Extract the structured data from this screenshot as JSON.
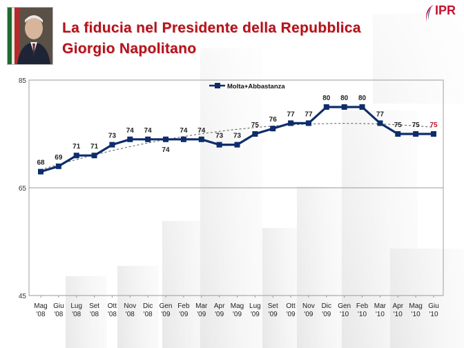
{
  "header": {
    "title_line1": "La fiducia nel Presidente della Repubblica",
    "title_line2": "Giorgio Napolitano",
    "logo_text": "IPR"
  },
  "colors": {
    "title": "#b5121b",
    "series": "#0d2d6b",
    "last_label": "#c0141d",
    "logo": "#c8102e"
  },
  "chart_data": {
    "type": "line",
    "title": "",
    "xlabel": "",
    "ylabel": "",
    "ylim": [
      45,
      85
    ],
    "yticks": [
      45,
      65,
      85
    ],
    "grid": true,
    "legend": "top-left",
    "categories": [
      [
        "Mag",
        "'08"
      ],
      [
        "Giu",
        "'08"
      ],
      [
        "Lug",
        "'08"
      ],
      [
        "Set",
        "'08"
      ],
      [
        "Ott",
        "'08"
      ],
      [
        "Nov",
        "'08"
      ],
      [
        "Dic",
        "'08"
      ],
      [
        "Gen",
        "'09"
      ],
      [
        "Feb",
        "'09"
      ],
      [
        "Mar",
        "'09"
      ],
      [
        "Apr",
        "'09"
      ],
      [
        "Mag",
        "'09"
      ],
      [
        "Lug",
        "'09"
      ],
      [
        "Set",
        "'09"
      ],
      [
        "Ott",
        "'09"
      ],
      [
        "Nov",
        "'09"
      ],
      [
        "Dic",
        "'09"
      ],
      [
        "Gen",
        "'10"
      ],
      [
        "Feb",
        "'10"
      ],
      [
        "Mar",
        "'10"
      ],
      [
        "Apr",
        "'10"
      ],
      [
        "Mag",
        "'10"
      ],
      [
        "Giu",
        "'10"
      ]
    ],
    "series": [
      {
        "name": "Molta+Abbastanza",
        "values": [
          68,
          69,
          71,
          71,
          73,
          74,
          74,
          74,
          74,
          74,
          73,
          73,
          75,
          76,
          77,
          77,
          80,
          80,
          80,
          77,
          75,
          75,
          75
        ]
      }
    ],
    "trendline": true
  }
}
